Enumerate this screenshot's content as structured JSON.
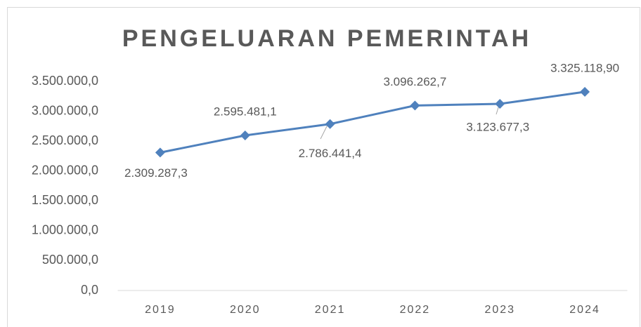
{
  "chart_data": {
    "type": "line",
    "title": "PENGELUARAN PEMERINTAH",
    "categories": [
      "2019",
      "2020",
      "2021",
      "2022",
      "2023",
      "2024"
    ],
    "series": [
      {
        "name": "Pengeluaran Pemerintah",
        "color": "#4f81bd",
        "values": [
          2309287.3,
          2595481.1,
          2786441.4,
          3096262.7,
          3123677.3,
          3325118.9
        ],
        "value_labels": [
          "2.309.287,3",
          "2.595.481,1",
          "2.786.441,4",
          "3.096.262,7",
          "3.123.677,3",
          "3.325.118,90"
        ]
      }
    ],
    "ylim": [
      0,
      3500000
    ],
    "yticks": [
      {
        "value": 0,
        "label": "0,0"
      },
      {
        "value": 500000,
        "label": "500.000,0"
      },
      {
        "value": 1000000,
        "label": "1.000.000,0"
      },
      {
        "value": 1500000,
        "label": "1.500.000,0"
      },
      {
        "value": 2000000,
        "label": "2.000.000,0"
      },
      {
        "value": 2500000,
        "label": "2.500.000,0"
      },
      {
        "value": 3000000,
        "label": "3.000.000,0"
      },
      {
        "value": 3500000,
        "label": "3.500.000,0"
      }
    ],
    "grid": false
  }
}
